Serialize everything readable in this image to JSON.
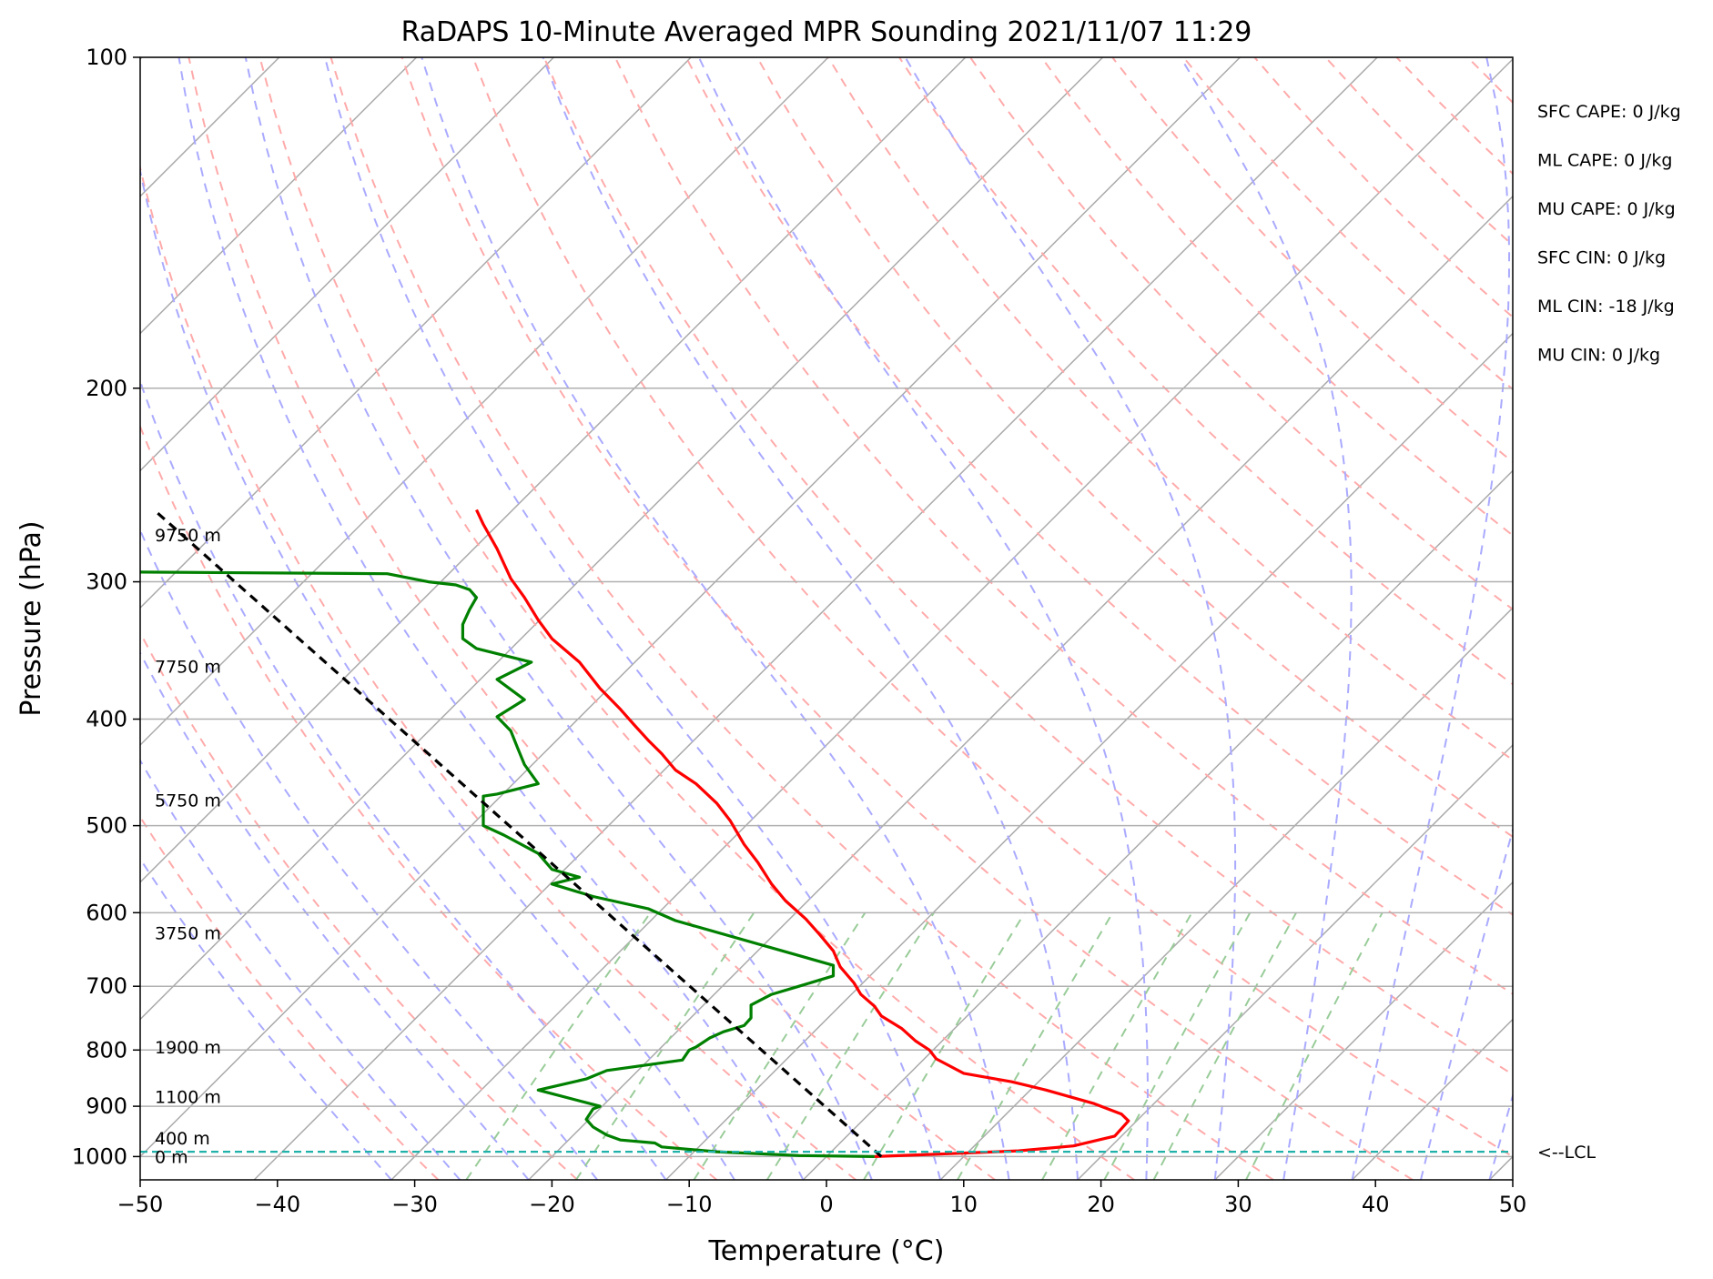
{
  "chart_data": {
    "type": "line",
    "title": "RaDAPS 10-Minute Averaged MPR Sounding 2021/11/07 11:29",
    "xlabel": "Temperature (°C)",
    "ylabel": "Pressure (hPa)",
    "xlim": [
      -50,
      50
    ],
    "ylim": [
      1050,
      100
    ],
    "y_scale": "log",
    "grid": true,
    "x_ticks": [
      -50,
      -40,
      -30,
      -20,
      -10,
      0,
      10,
      20,
      30,
      40,
      50
    ],
    "x_tick_labels": [
      "−50",
      "−40",
      "−30",
      "−20",
      "−10",
      "0",
      "10",
      "20",
      "30",
      "40",
      "50"
    ],
    "y_ticks": [
      100,
      200,
      300,
      400,
      500,
      600,
      700,
      800,
      900,
      1000
    ],
    "y_tick_labels": [
      "100",
      "200",
      "300",
      "400",
      "500",
      "600",
      "700",
      "800",
      "900",
      "1000"
    ],
    "height_labels": [
      {
        "p": 272,
        "text": "9750 m"
      },
      {
        "p": 358,
        "text": "7750 m"
      },
      {
        "p": 474,
        "text": "5750 m"
      },
      {
        "p": 626,
        "text": "3750 m"
      },
      {
        "p": 795,
        "text": "1900 m"
      },
      {
        "p": 882,
        "text": "1100 m"
      },
      {
        "p": 962,
        "text": "400 m"
      },
      {
        "p": 1000,
        "text": "0 m"
      }
    ],
    "lcl": {
      "p": 990,
      "label": "<--LCL"
    },
    "indices": [
      "SFC CAPE: 0 J/kg",
      "ML CAPE: 0 J/kg",
      "MU CAPE: 0 J/kg",
      "SFC CIN: 0 J/kg",
      "ML CIN: -18 J/kg",
      "MU CIN: 0 J/kg"
    ],
    "series": [
      {
        "name": "",
        "color": "#ff0000",
        "x_skewed": [
          3.5,
          8,
          14,
          18,
          21,
          22,
          21.5,
          19.5,
          16,
          13.5,
          10,
          8,
          7.5,
          6.5,
          5.5,
          4,
          3.5,
          2.5,
          2,
          1,
          0.5,
          -0.5,
          -1.5,
          -3,
          -4,
          -5,
          -6,
          -7,
          -8,
          -9.5,
          -11,
          -12,
          -13,
          -14,
          -15,
          -16.5,
          -18,
          -20,
          -21,
          -22,
          -23,
          -24,
          -25,
          -25.5
        ],
        "p": [
          1000,
          995,
          988,
          978,
          958,
          928,
          915,
          895,
          870,
          855,
          840,
          815,
          800,
          785,
          765,
          745,
          730,
          712,
          695,
          672,
          650,
          628,
          608,
          585,
          565,
          540,
          520,
          495,
          477,
          458,
          445,
          430,
          418,
          405,
          392,
          375,
          355,
          338,
          325,
          310,
          298,
          280,
          266,
          258
        ]
      },
      {
        "name": "",
        "color": "#008000",
        "x_skewed": [
          3.5,
          -2,
          -8,
          -12,
          -12.5,
          -15,
          -16,
          -16.5,
          -17,
          -17.5,
          -17,
          -16.5,
          -21,
          -17.5,
          -17,
          -16,
          -10.5,
          -10,
          -9.5,
          -8.5,
          -7.5,
          -6,
          -5.5,
          -5.5,
          -4,
          -2,
          0.5,
          0.5,
          -11,
          -13,
          -17,
          -20,
          -18,
          -20,
          -21,
          -23.5,
          -25,
          -25,
          -25,
          -24,
          -21,
          -22,
          -22.5,
          -23,
          -24,
          -22,
          -24,
          -21.5,
          -25.5,
          -26.5,
          -26.5,
          -26,
          -25.5,
          -26,
          -27,
          -29,
          -32,
          -50
        ],
        "p": [
          1000,
          998,
          990,
          980,
          972,
          966,
          956,
          948,
          940,
          925,
          905,
          900,
          870,
          850,
          845,
          835,
          817,
          800,
          795,
          780,
          770,
          760,
          748,
          728,
          712,
          700,
          685,
          670,
          610,
          595,
          580,
          565,
          557,
          548,
          530,
          510,
          500,
          480,
          470,
          468,
          458,
          440,
          425,
          410,
          398,
          384,
          368,
          355,
          345,
          338,
          328,
          318,
          310,
          305,
          302,
          300,
          295,
          294
        ]
      },
      {
        "name": "",
        "color": "#000000",
        "dashed": true,
        "x_skewed": [
          4,
          -49
        ],
        "p": [
          1000,
          258
        ]
      }
    ],
    "background_lines": {
      "isotherms_color": "#aaaaaa",
      "dry_adiabats_color": "#ffaaaa",
      "moist_adiabats_color": "#aaaaff",
      "mixing_ratio_color": "#99cc99",
      "lcl_line_color": "#20b2aa"
    }
  }
}
